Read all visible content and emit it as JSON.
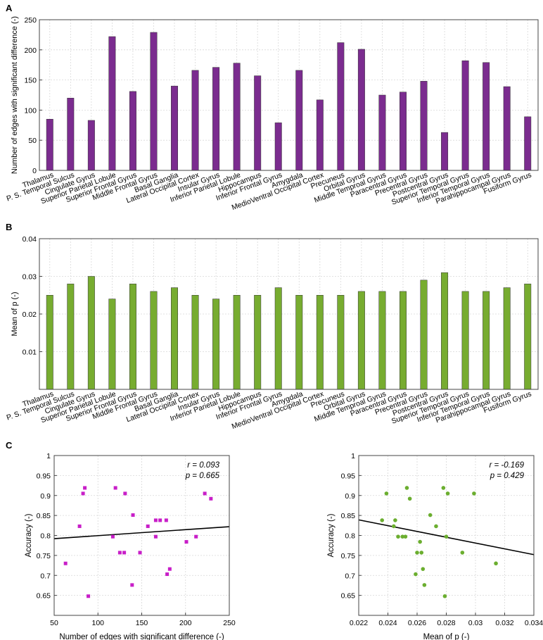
{
  "panel_labels": [
    "A",
    "B",
    "C"
  ],
  "colors": {
    "purple": "#7B2C8F",
    "green": "#77AC30",
    "magenta": "#C81EC8",
    "scatter_green": "#6BAE2F",
    "axis": "#444444",
    "grid": "#D8D8D8"
  },
  "chart_data": [
    {
      "type": "bar",
      "panel": "A",
      "title": "",
      "xlabel": "",
      "ylabel": "Number of edges with significant difference (-)",
      "ylim": [
        0,
        250
      ],
      "yticks": [
        0,
        50,
        100,
        150,
        200,
        250
      ],
      "ytick_labels": [
        "0",
        "50",
        "100",
        "150",
        "200",
        "250"
      ],
      "grid": true,
      "color": "#7B2C8F",
      "categories": [
        "Thalamus",
        "P. S. Temporal Sulcus",
        "Cingulate Gyrus",
        "Superior Parietal Lobule",
        "Superior Frontal Gyrus",
        "Middle Frontal Gyrus",
        "Basal Ganglia",
        "Lateral Occipital Cortex",
        "Insular Gyrus",
        "Inferior Parietal Lobule",
        "Hippocampus",
        "Inferior Frontal Gyrus",
        "Amygdala",
        "MedioVentral Occipital Cortex",
        "Precuneus",
        "Orbital Gyrus",
        "Middle Temproal Gyrus",
        "Paracentral Gyrus",
        "Precentral Gyrus",
        "Postcentral Gyrus",
        "Superior Temporal Gyrus",
        "Inferior Temporal Gyrus",
        "Parahippocampal Gyrus",
        "Fusiform Gyrus"
      ],
      "values": [
        85,
        120,
        83,
        222,
        131,
        229,
        140,
        166,
        171,
        178,
        157,
        79,
        166,
        117,
        212,
        201,
        125,
        130,
        148,
        63,
        182,
        179,
        139,
        89
      ]
    },
    {
      "type": "bar",
      "panel": "B",
      "title": "",
      "xlabel": "",
      "ylabel": "Mean of p (-)",
      "ylim": [
        0,
        0.04
      ],
      "yticks": [
        0.01,
        0.02,
        0.03,
        0.04
      ],
      "ytick_labels": [
        "0.01",
        "0.02",
        "0.03",
        "0.04"
      ],
      "grid": true,
      "color": "#77AC30",
      "categories": [
        "Thalamus",
        "P. S. Temporal Sulcus",
        "Cingulate Gyrus",
        "Superior Parietal Lobule",
        "Superior Frontal Gyrus",
        "Middle Frontal Gyrus",
        "Basal Ganglia",
        "Lateral Occipital Cortex",
        "Insular Gyrus",
        "Inferior Parietal Lobule",
        "Hippocampus",
        "Inferior Frontal Gyrus",
        "Amygdala",
        "MedioVentral Occipital Cortex",
        "Precuneus",
        "Orbital Gyrus",
        "Middle Temproal Gyrus",
        "Paracentral Gyrus",
        "Precentral Gyrus",
        "Postcentral Gyrus",
        "Superior Temporal Gyrus",
        "Inferior Temporal Gyrus",
        "Parahippocampal Gyrus",
        "Fusiform Gyrus"
      ],
      "values": [
        0.025,
        0.028,
        0.03,
        0.024,
        0.028,
        0.026,
        0.027,
        0.025,
        0.024,
        0.025,
        0.025,
        0.027,
        0.025,
        0.025,
        0.025,
        0.026,
        0.026,
        0.026,
        0.029,
        0.031,
        0.026,
        0.026,
        0.027,
        0.028
      ]
    },
    {
      "type": "scatter",
      "panel": "C-left",
      "title": "",
      "xlabel": "Number of edges with significant difference (-)",
      "ylabel": "Accuracy (-)",
      "xlim": [
        50,
        250
      ],
      "ylim": [
        0.6,
        1
      ],
      "xticks": [
        50,
        100,
        150,
        200,
        250
      ],
      "xtick_labels": [
        "50",
        "100",
        "150",
        "200",
        "250"
      ],
      "yticks": [
        0.65,
        0.7,
        0.75,
        0.8,
        0.85,
        0.9,
        0.95,
        1
      ],
      "ytick_labels": [
        "0.65",
        "0.7",
        "0.75",
        "0.8",
        "0.85",
        "0.9",
        "0.95",
        "1"
      ],
      "grid": true,
      "marker": "square",
      "color": "#C81EC8",
      "x": [
        63,
        79,
        83,
        85,
        89,
        117,
        120,
        125,
        130,
        131,
        139,
        140,
        148,
        157,
        166,
        166,
        171,
        178,
        179,
        182,
        201,
        212,
        222,
        229
      ],
      "y": [
        0.73,
        0.823,
        0.905,
        0.919,
        0.648,
        0.797,
        0.919,
        0.757,
        0.757,
        0.905,
        0.676,
        0.851,
        0.757,
        0.823,
        0.797,
        0.838,
        0.838,
        0.838,
        0.703,
        0.716,
        0.784,
        0.797,
        0.905,
        0.892
      ],
      "fit_line": {
        "x": [
          50,
          250
        ],
        "y": [
          0.792,
          0.822
        ]
      },
      "annotations": [
        "r = 0.093",
        "p = 0.665"
      ]
    },
    {
      "type": "scatter",
      "panel": "C-right",
      "title": "",
      "xlabel": "Mean of p (-)",
      "ylabel": "Accuracy (-)",
      "xlim": [
        0.022,
        0.034
      ],
      "ylim": [
        0.6,
        1
      ],
      "xticks": [
        0.022,
        0.024,
        0.026,
        0.028,
        0.03,
        0.032,
        0.034
      ],
      "xtick_labels": [
        "0.022",
        "0.024",
        "0.026",
        "0.028",
        "0.03",
        "0.032",
        "0.034"
      ],
      "yticks": [
        0.65,
        0.7,
        0.75,
        0.8,
        0.85,
        0.9,
        0.95,
        1
      ],
      "ytick_labels": [
        "0.65",
        "0.7",
        "0.75",
        "0.8",
        "0.85",
        "0.9",
        "0.95",
        "1"
      ],
      "grid": true,
      "marker": "circle",
      "color": "#6BAE2F",
      "x": [
        0.0236,
        0.0239,
        0.0244,
        0.0245,
        0.0247,
        0.025,
        0.0252,
        0.0253,
        0.0255,
        0.0259,
        0.026,
        0.0262,
        0.0263,
        0.0264,
        0.0265,
        0.0269,
        0.0273,
        0.0278,
        0.0279,
        0.028,
        0.0281,
        0.0291,
        0.0299,
        0.0314
      ],
      "y": [
        0.838,
        0.905,
        0.823,
        0.838,
        0.797,
        0.797,
        0.797,
        0.919,
        0.892,
        0.703,
        0.757,
        0.784,
        0.757,
        0.716,
        0.676,
        0.851,
        0.823,
        0.919,
        0.648,
        0.797,
        0.905,
        0.757,
        0.905,
        0.73
      ],
      "fit_line": {
        "x": [
          0.022,
          0.034
        ],
        "y": [
          0.839,
          0.752
        ]
      },
      "annotations": [
        "r = -0.169",
        "p = 0.429"
      ]
    }
  ]
}
